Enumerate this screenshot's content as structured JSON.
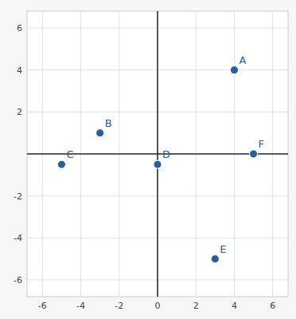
{
  "chart_data": {
    "type": "scatter",
    "labels": [
      "A",
      "B",
      "C",
      "D",
      "E",
      "F"
    ],
    "x": [
      4,
      -3,
      -5,
      0,
      3,
      5
    ],
    "values": [
      4,
      1,
      -0.5,
      -0.5,
      -5,
      0
    ],
    "color": "#2a6099",
    "xlim": [
      -6.8,
      6.8
    ],
    "ylim": [
      -6.8,
      6.8
    ],
    "xticks": [
      -6,
      -4,
      -2,
      0,
      2,
      4,
      6
    ],
    "yticks": [
      -6,
      -4,
      -2,
      2,
      4,
      6
    ],
    "grid": true
  }
}
